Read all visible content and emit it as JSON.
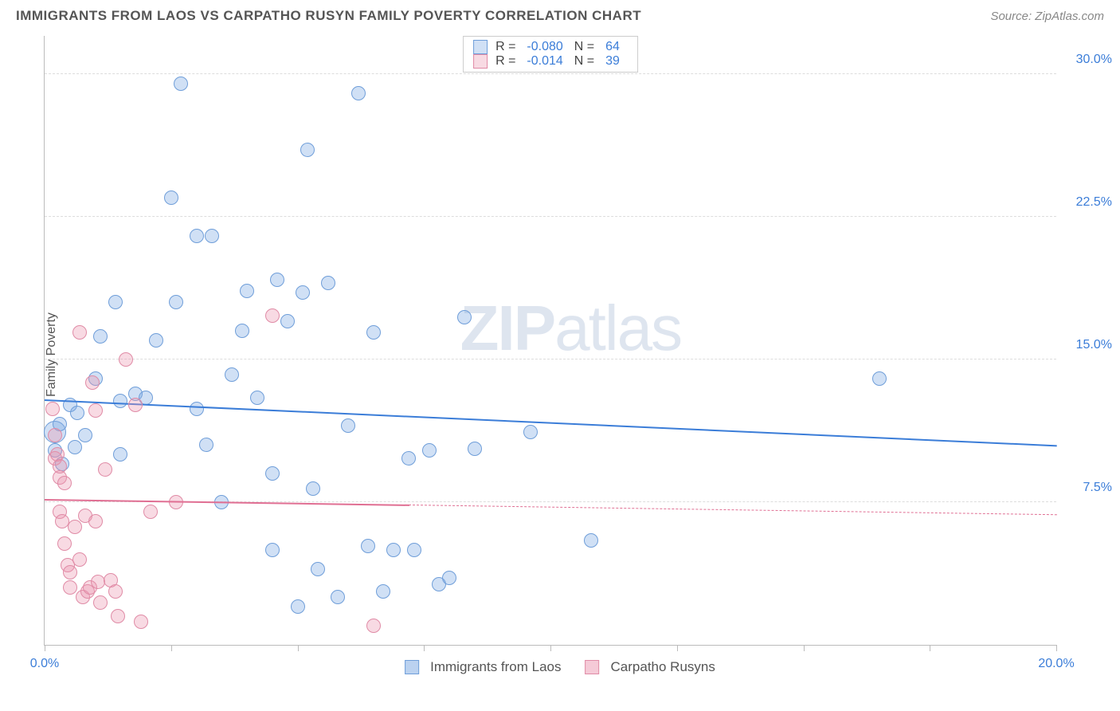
{
  "header": {
    "title": "IMMIGRANTS FROM LAOS VS CARPATHO RUSYN FAMILY POVERTY CORRELATION CHART",
    "source": "Source: ZipAtlas.com"
  },
  "chart": {
    "y_axis_label": "Family Poverty",
    "watermark": "ZIPatlas",
    "xlim": [
      0,
      20
    ],
    "ylim": [
      0,
      32
    ],
    "x_ticks": [
      0,
      2.5,
      5,
      7.5,
      10,
      12.5,
      15,
      17.5,
      20
    ],
    "x_tick_labels": {
      "0": "0.0%",
      "20": "20.0%"
    },
    "y_gridlines": [
      7.5,
      15.0,
      22.5,
      30.0
    ],
    "y_tick_labels": [
      "7.5%",
      "15.0%",
      "22.5%",
      "30.0%"
    ],
    "grid_color": "#dddddd",
    "axis_color": "#bbbbbb",
    "tick_label_color": "#3b7dd8",
    "background_color": "#ffffff",
    "series": [
      {
        "id": "laos",
        "name": "Immigrants from Laos",
        "fill": "rgba(120,165,225,0.35)",
        "stroke": "#6f9ed9",
        "line_color": "#3b7dd8",
        "R_label": "R =",
        "R": "-0.080",
        "N_label": "N =",
        "N": "64",
        "trend": {
          "y_at_x0": 12.8,
          "y_at_x20": 10.4,
          "solid_until_x": 20
        },
        "points": [
          {
            "x": 0.2,
            "y": 11.2,
            "r": 14
          },
          {
            "x": 0.2,
            "y": 10.2,
            "r": 9
          },
          {
            "x": 0.3,
            "y": 11.6,
            "r": 9
          },
          {
            "x": 0.35,
            "y": 9.5,
            "r": 9
          },
          {
            "x": 0.5,
            "y": 12.6,
            "r": 9
          },
          {
            "x": 0.6,
            "y": 10.4,
            "r": 9
          },
          {
            "x": 0.65,
            "y": 12.2,
            "r": 9
          },
          {
            "x": 0.8,
            "y": 11.0,
            "r": 9
          },
          {
            "x": 1.0,
            "y": 14.0,
            "r": 9
          },
          {
            "x": 1.1,
            "y": 16.2,
            "r": 9
          },
          {
            "x": 1.4,
            "y": 18.0,
            "r": 9
          },
          {
            "x": 1.5,
            "y": 12.8,
            "r": 9
          },
          {
            "x": 1.5,
            "y": 10.0,
            "r": 9
          },
          {
            "x": 1.8,
            "y": 13.2,
            "r": 9
          },
          {
            "x": 2.0,
            "y": 13.0,
            "r": 9
          },
          {
            "x": 2.2,
            "y": 16.0,
            "r": 9
          },
          {
            "x": 2.6,
            "y": 18.0,
            "r": 9
          },
          {
            "x": 2.5,
            "y": 23.5,
            "r": 9
          },
          {
            "x": 2.7,
            "y": 29.5,
            "r": 9
          },
          {
            "x": 3.0,
            "y": 21.5,
            "r": 9
          },
          {
            "x": 3.3,
            "y": 21.5,
            "r": 9
          },
          {
            "x": 3.0,
            "y": 12.4,
            "r": 9
          },
          {
            "x": 3.2,
            "y": 10.5,
            "r": 9
          },
          {
            "x": 3.5,
            "y": 7.5,
            "r": 9
          },
          {
            "x": 3.7,
            "y": 14.2,
            "r": 9
          },
          {
            "x": 3.9,
            "y": 16.5,
            "r": 9
          },
          {
            "x": 4.0,
            "y": 18.6,
            "r": 9
          },
          {
            "x": 4.2,
            "y": 13.0,
            "r": 9
          },
          {
            "x": 4.5,
            "y": 9.0,
            "r": 9
          },
          {
            "x": 4.5,
            "y": 5.0,
            "r": 9
          },
          {
            "x": 4.6,
            "y": 19.2,
            "r": 9
          },
          {
            "x": 4.8,
            "y": 17.0,
            "r": 9
          },
          {
            "x": 5.0,
            "y": 2.0,
            "r": 9
          },
          {
            "x": 5.1,
            "y": 18.5,
            "r": 9
          },
          {
            "x": 5.2,
            "y": 26.0,
            "r": 9
          },
          {
            "x": 5.3,
            "y": 8.2,
            "r": 9
          },
          {
            "x": 5.4,
            "y": 4.0,
            "r": 9
          },
          {
            "x": 5.6,
            "y": 19.0,
            "r": 9
          },
          {
            "x": 5.8,
            "y": 2.5,
            "r": 9
          },
          {
            "x": 6.0,
            "y": 11.5,
            "r": 9
          },
          {
            "x": 6.2,
            "y": 29.0,
            "r": 9
          },
          {
            "x": 6.4,
            "y": 5.2,
            "r": 9
          },
          {
            "x": 6.5,
            "y": 16.4,
            "r": 9
          },
          {
            "x": 6.7,
            "y": 2.8,
            "r": 9
          },
          {
            "x": 6.9,
            "y": 5.0,
            "r": 9
          },
          {
            "x": 7.2,
            "y": 9.8,
            "r": 9
          },
          {
            "x": 7.3,
            "y": 5.0,
            "r": 9
          },
          {
            "x": 7.6,
            "y": 10.2,
            "r": 9
          },
          {
            "x": 7.8,
            "y": 3.2,
            "r": 9
          },
          {
            "x": 8.0,
            "y": 3.5,
            "r": 9
          },
          {
            "x": 8.3,
            "y": 17.2,
            "r": 9
          },
          {
            "x": 8.5,
            "y": 10.3,
            "r": 9
          },
          {
            "x": 9.6,
            "y": 11.2,
            "r": 9
          },
          {
            "x": 10.8,
            "y": 5.5,
            "r": 9
          },
          {
            "x": 16.5,
            "y": 14.0,
            "r": 9
          }
        ]
      },
      {
        "id": "rusyn",
        "name": "Carpatho Rusyns",
        "fill": "rgba(235,150,175,0.35)",
        "stroke": "#e08ba6",
        "line_color": "#e06f93",
        "R_label": "R =",
        "R": "-0.014",
        "N_label": "N =",
        "N": "39",
        "trend": {
          "y_at_x0": 7.6,
          "y_at_x20": 6.8,
          "solid_until_x": 7.2
        },
        "points": [
          {
            "x": 0.15,
            "y": 12.4,
            "r": 9
          },
          {
            "x": 0.2,
            "y": 11.0,
            "r": 9
          },
          {
            "x": 0.2,
            "y": 9.8,
            "r": 9
          },
          {
            "x": 0.25,
            "y": 10.0,
            "r": 9
          },
          {
            "x": 0.3,
            "y": 8.8,
            "r": 9
          },
          {
            "x": 0.3,
            "y": 9.4,
            "r": 9
          },
          {
            "x": 0.3,
            "y": 7.0,
            "r": 9
          },
          {
            "x": 0.35,
            "y": 6.5,
            "r": 9
          },
          {
            "x": 0.4,
            "y": 5.3,
            "r": 9
          },
          {
            "x": 0.4,
            "y": 8.5,
            "r": 9
          },
          {
            "x": 0.45,
            "y": 4.2,
            "r": 9
          },
          {
            "x": 0.5,
            "y": 3.8,
            "r": 9
          },
          {
            "x": 0.5,
            "y": 3.0,
            "r": 9
          },
          {
            "x": 0.6,
            "y": 6.2,
            "r": 9
          },
          {
            "x": 0.7,
            "y": 16.4,
            "r": 9
          },
          {
            "x": 0.7,
            "y": 4.5,
            "r": 9
          },
          {
            "x": 0.75,
            "y": 2.5,
            "r": 9
          },
          {
            "x": 0.8,
            "y": 6.8,
            "r": 9
          },
          {
            "x": 0.85,
            "y": 2.8,
            "r": 9
          },
          {
            "x": 0.9,
            "y": 3.0,
            "r": 9
          },
          {
            "x": 0.95,
            "y": 13.8,
            "r": 9
          },
          {
            "x": 1.0,
            "y": 12.3,
            "r": 9
          },
          {
            "x": 1.0,
            "y": 6.5,
            "r": 9
          },
          {
            "x": 1.05,
            "y": 3.3,
            "r": 9
          },
          {
            "x": 1.1,
            "y": 2.2,
            "r": 9
          },
          {
            "x": 1.2,
            "y": 9.2,
            "r": 9
          },
          {
            "x": 1.3,
            "y": 3.4,
            "r": 9
          },
          {
            "x": 1.4,
            "y": 2.8,
            "r": 9
          },
          {
            "x": 1.45,
            "y": 1.5,
            "r": 9
          },
          {
            "x": 1.6,
            "y": 15.0,
            "r": 9
          },
          {
            "x": 1.8,
            "y": 12.6,
            "r": 9
          },
          {
            "x": 1.9,
            "y": 1.2,
            "r": 9
          },
          {
            "x": 2.1,
            "y": 7.0,
            "r": 9
          },
          {
            "x": 2.6,
            "y": 7.5,
            "r": 9
          },
          {
            "x": 4.5,
            "y": 17.3,
            "r": 9
          },
          {
            "x": 6.5,
            "y": 1.0,
            "r": 9
          }
        ]
      }
    ],
    "point_stroke_width": 1.5
  },
  "legend_bottom": {
    "items": [
      {
        "swatch_fill": "rgba(120,165,225,0.5)",
        "swatch_stroke": "#6f9ed9",
        "label": "Immigrants from Laos"
      },
      {
        "swatch_fill": "rgba(235,150,175,0.5)",
        "swatch_stroke": "#e08ba6",
        "label": "Carpatho Rusyns"
      }
    ]
  }
}
